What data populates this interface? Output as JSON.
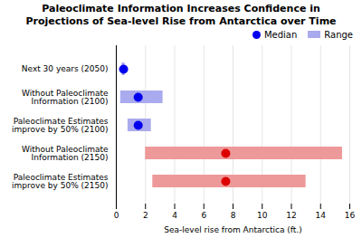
{
  "chart_data": {
    "type": "range",
    "orientation": "horizontal",
    "title": "Paleoclimate Information Increases Confidence in\nProjections of Sea-level Rise from Antarctica over Time",
    "xlabel": "Sea-level rise from Antarctica (ft.)",
    "categories": [
      "Next 30 years (2050)",
      "Without Paleoclimate\nInformation (2100)",
      "Paleoclimate Estimates\nimprove by 50% (2100)",
      "Without Paleoclimate\nInformation (2150)",
      "Paleoclimate Estimates\nimprove by 50% (2150)"
    ],
    "series": [
      {
        "name": "Median",
        "type": "scatter",
        "color": "#0000ee",
        "values": [
          0.5,
          1.5,
          1.5,
          7.5,
          7.5
        ],
        "colors": [
          "#0000ee",
          "#0000ee",
          "#0000ee",
          "#dd0000",
          "#dd0000"
        ]
      },
      {
        "name": "Range",
        "type": "bar",
        "color": "#aaaaee",
        "low": [
          0.4,
          0.3,
          0.8,
          2.0,
          2.5
        ],
        "high": [
          0.6,
          3.2,
          2.4,
          15.5,
          13.0
        ],
        "colors": [
          "#aaaaee",
          "#aaaaee",
          "#aaaaee",
          "#ee9999",
          "#ee9999"
        ]
      }
    ],
    "xlim": [
      0,
      16
    ],
    "xticks": [
      0,
      2,
      4,
      6,
      8,
      10,
      12,
      14,
      16
    ],
    "grid": true,
    "legend": "upper right"
  }
}
